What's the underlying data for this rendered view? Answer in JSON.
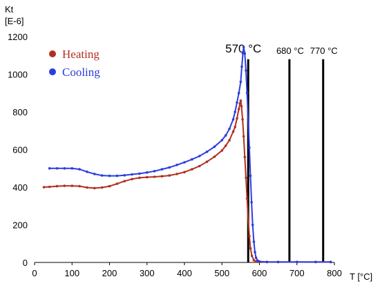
{
  "chart_data": {
    "type": "scatter",
    "ylabel": "Kt",
    "yunit": "[E-6]",
    "xlabel": "T [°C]",
    "xlim": [
      0,
      800
    ],
    "ylim": [
      0,
      1200
    ],
    "xticks": [
      0,
      100,
      200,
      300,
      400,
      500,
      600,
      700,
      800
    ],
    "yticks": [
      0,
      200,
      400,
      600,
      800,
      1000,
      1200
    ],
    "grid": false,
    "legend_position": "top-left",
    "series": [
      {
        "name": "Heating",
        "color": "#b03020",
        "points": [
          [
            25,
            400
          ],
          [
            40,
            402
          ],
          [
            60,
            405
          ],
          [
            80,
            407
          ],
          [
            100,
            407
          ],
          [
            120,
            405
          ],
          [
            140,
            398
          ],
          [
            160,
            395
          ],
          [
            180,
            398
          ],
          [
            200,
            405
          ],
          [
            220,
            418
          ],
          [
            240,
            432
          ],
          [
            260,
            443
          ],
          [
            280,
            450
          ],
          [
            300,
            453
          ],
          [
            320,
            455
          ],
          [
            340,
            458
          ],
          [
            360,
            462
          ],
          [
            380,
            470
          ],
          [
            400,
            480
          ],
          [
            420,
            495
          ],
          [
            440,
            512
          ],
          [
            460,
            535
          ],
          [
            480,
            562
          ],
          [
            500,
            595
          ],
          [
            510,
            620
          ],
          [
            520,
            650
          ],
          [
            530,
            695
          ],
          [
            535,
            720
          ],
          [
            540,
            765
          ],
          [
            545,
            815
          ],
          [
            548,
            845
          ],
          [
            550,
            860
          ],
          [
            552,
            830
          ],
          [
            555,
            760
          ],
          [
            558,
            670
          ],
          [
            561,
            560
          ],
          [
            564,
            450
          ],
          [
            567,
            340
          ],
          [
            570,
            230
          ],
          [
            573,
            140
          ],
          [
            576,
            75
          ],
          [
            580,
            35
          ],
          [
            585,
            12
          ],
          [
            590,
            5
          ],
          [
            600,
            3
          ],
          [
            620,
            2
          ],
          [
            650,
            2
          ],
          [
            700,
            2
          ],
          [
            750,
            2
          ],
          [
            790,
            2
          ]
        ]
      },
      {
        "name": "Cooling",
        "color": "#2a3de0",
        "points": [
          [
            40,
            500
          ],
          [
            60,
            500
          ],
          [
            80,
            500
          ],
          [
            100,
            500
          ],
          [
            120,
            495
          ],
          [
            140,
            482
          ],
          [
            160,
            470
          ],
          [
            180,
            462
          ],
          [
            200,
            460
          ],
          [
            220,
            460
          ],
          [
            240,
            463
          ],
          [
            260,
            468
          ],
          [
            280,
            472
          ],
          [
            300,
            478
          ],
          [
            320,
            485
          ],
          [
            340,
            495
          ],
          [
            360,
            505
          ],
          [
            380,
            518
          ],
          [
            400,
            532
          ],
          [
            420,
            548
          ],
          [
            440,
            565
          ],
          [
            460,
            588
          ],
          [
            480,
            615
          ],
          [
            500,
            650
          ],
          [
            510,
            675
          ],
          [
            520,
            710
          ],
          [
            530,
            760
          ],
          [
            535,
            800
          ],
          [
            540,
            850
          ],
          [
            545,
            900
          ],
          [
            550,
            960
          ],
          [
            553,
            1040
          ],
          [
            556,
            1110
          ],
          [
            558,
            1145
          ],
          [
            561,
            1110
          ],
          [
            564,
            1020
          ],
          [
            567,
            900
          ],
          [
            570,
            760
          ],
          [
            573,
            610
          ],
          [
            576,
            460
          ],
          [
            579,
            320
          ],
          [
            582,
            200
          ],
          [
            585,
            110
          ],
          [
            588,
            55
          ],
          [
            591,
            25
          ],
          [
            595,
            10
          ],
          [
            600,
            5
          ],
          [
            620,
            3
          ],
          [
            650,
            3
          ],
          [
            700,
            3
          ],
          [
            750,
            3
          ],
          [
            790,
            3
          ]
        ]
      }
    ],
    "vertical_lines": [
      {
        "x": 570,
        "label": "570 °C"
      },
      {
        "x": 680,
        "label": "680 °C"
      },
      {
        "x": 770,
        "label": "770 °C"
      }
    ]
  }
}
